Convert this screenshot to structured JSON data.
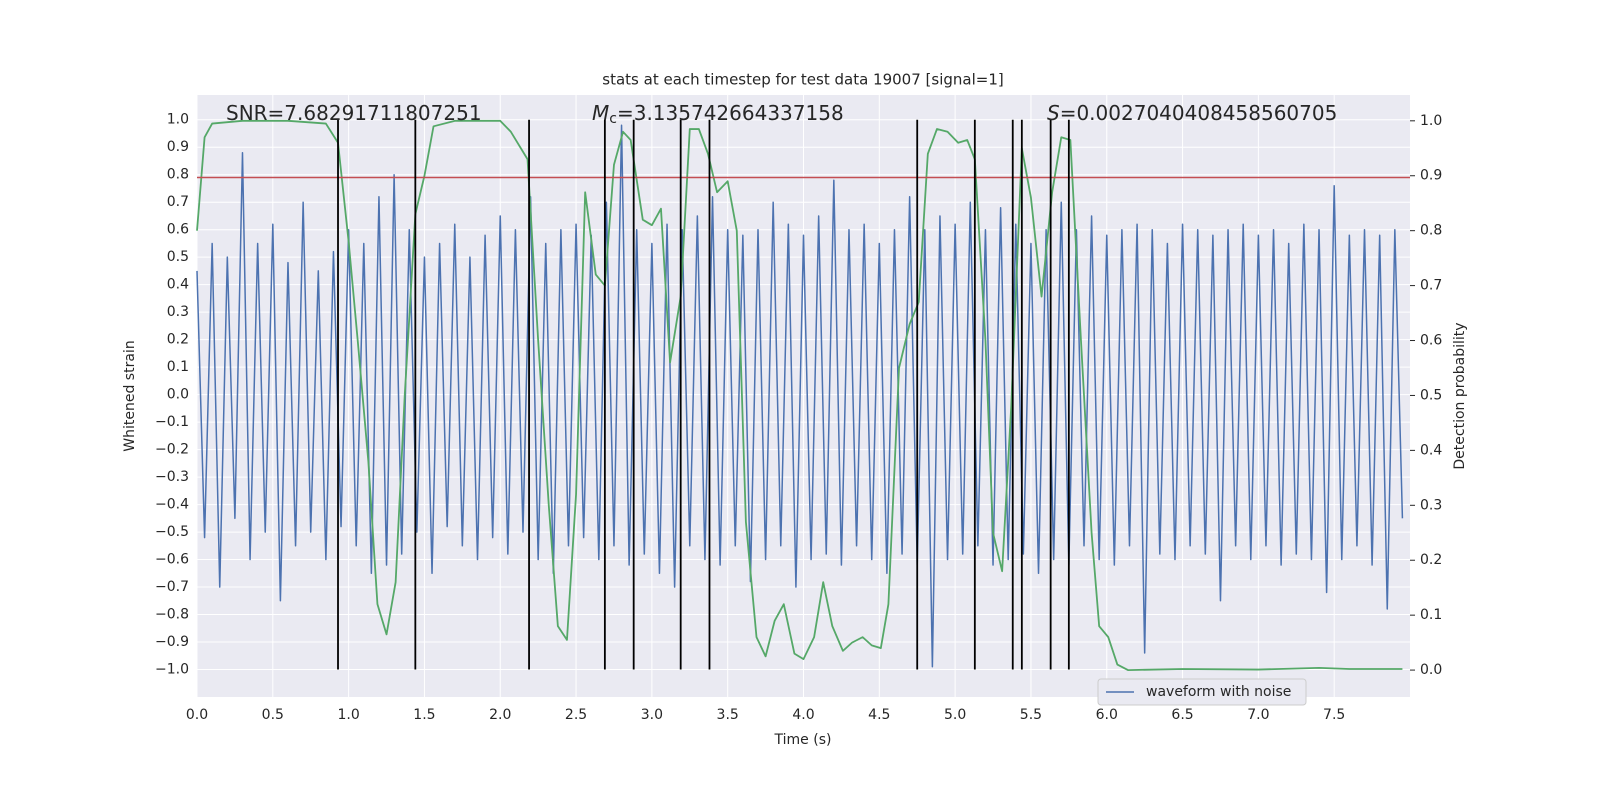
{
  "chart_data": {
    "type": "line",
    "title": "stats at each timestep for test data 19007 [signal=1]",
    "xlabel": "Time (s)",
    "ylabel": "Whitened strain",
    "y2label": "Detection probability",
    "xlim": [
      0,
      8.0
    ],
    "ylim": [
      -1.1,
      1.09
    ],
    "y2lim": [
      -0.049,
      1.047
    ],
    "grid": true,
    "legend": "lower right",
    "xticks": [
      {
        "value": 0,
        "label": "0.0"
      },
      {
        "value": 0.5,
        "label": "0.5"
      },
      {
        "value": 1,
        "label": "1.0"
      },
      {
        "value": 1.5,
        "label": "1.5"
      },
      {
        "value": 2,
        "label": "2.0"
      },
      {
        "value": 2.5,
        "label": "2.5"
      },
      {
        "value": 3,
        "label": "3.0"
      },
      {
        "value": 3.5,
        "label": "3.5"
      },
      {
        "value": 4,
        "label": "4.0"
      },
      {
        "value": 4.5,
        "label": "4.5"
      },
      {
        "value": 5,
        "label": "5.0"
      },
      {
        "value": 5.5,
        "label": "5.5"
      },
      {
        "value": 6,
        "label": "6.0"
      },
      {
        "value": 6.5,
        "label": "6.5"
      },
      {
        "value": 7,
        "label": "7.0"
      },
      {
        "value": 7.5,
        "label": "7.5"
      }
    ],
    "yticks": [
      {
        "value": -1,
        "label": "−1.0"
      },
      {
        "value": -0.9,
        "label": "−0.9"
      },
      {
        "value": -0.8,
        "label": "−0.8"
      },
      {
        "value": -0.7,
        "label": "−0.7"
      },
      {
        "value": -0.6,
        "label": "−0.6"
      },
      {
        "value": -0.5,
        "label": "−0.5"
      },
      {
        "value": -0.4,
        "label": "−0.4"
      },
      {
        "value": -0.3,
        "label": "−0.3"
      },
      {
        "value": -0.2,
        "label": "−0.2"
      },
      {
        "value": -0.1,
        "label": "−0.1"
      },
      {
        "value": 0,
        "label": "0.0"
      },
      {
        "value": 0.1,
        "label": "0.1"
      },
      {
        "value": 0.2,
        "label": "0.2"
      },
      {
        "value": 0.3,
        "label": "0.3"
      },
      {
        "value": 0.4,
        "label": "0.4"
      },
      {
        "value": 0.5,
        "label": "0.5"
      },
      {
        "value": 0.6,
        "label": "0.6"
      },
      {
        "value": 0.7,
        "label": "0.7"
      },
      {
        "value": 0.8,
        "label": "0.8"
      },
      {
        "value": 0.9,
        "label": "0.9"
      },
      {
        "value": 1,
        "label": "1.0"
      }
    ],
    "y2ticks": [
      {
        "value": 0,
        "label": "0.0"
      },
      {
        "value": 0.1,
        "label": "0.1"
      },
      {
        "value": 0.2,
        "label": "0.2"
      },
      {
        "value": 0.3,
        "label": "0.3"
      },
      {
        "value": 0.4,
        "label": "0.4"
      },
      {
        "value": 0.5,
        "label": "0.5"
      },
      {
        "value": 0.6,
        "label": "0.6"
      },
      {
        "value": 0.7,
        "label": "0.7"
      },
      {
        "value": 0.8,
        "label": "0.8"
      },
      {
        "value": 0.9,
        "label": "0.9"
      },
      {
        "value": 1,
        "label": "1.0"
      }
    ],
    "series": [
      {
        "name": "waveform with noise",
        "color": "#4c72b0",
        "x": [
          0,
          0.05,
          0.1,
          0.15,
          0.2,
          0.25,
          0.3,
          0.35,
          0.4,
          0.45,
          0.5,
          0.55,
          0.6,
          0.65,
          0.7,
          0.75,
          0.8,
          0.85,
          0.9,
          0.95,
          1,
          1.05,
          1.1,
          1.15,
          1.2,
          1.25,
          1.3,
          1.35,
          1.4,
          1.45,
          1.5,
          1.55,
          1.6,
          1.65,
          1.7,
          1.75,
          1.8,
          1.85,
          1.9,
          1.95,
          2,
          2.05,
          2.1,
          2.15,
          2.2,
          2.25,
          2.3,
          2.35,
          2.4,
          2.45,
          2.5,
          2.55,
          2.6,
          2.65,
          2.7,
          2.75,
          2.8,
          2.85,
          2.9,
          2.95,
          3,
          3.05,
          3.1,
          3.15,
          3.2,
          3.25,
          3.3,
          3.35,
          3.4,
          3.45,
          3.5,
          3.55,
          3.6,
          3.65,
          3.7,
          3.75,
          3.8,
          3.85,
          3.9,
          3.95,
          4,
          4.05,
          4.1,
          4.15,
          4.2,
          4.25,
          4.3,
          4.35,
          4.4,
          4.45,
          4.5,
          4.55,
          4.6,
          4.65,
          4.7,
          4.75,
          4.8,
          4.85,
          4.9,
          4.95,
          5,
          5.05,
          5.1,
          5.15,
          5.2,
          5.25,
          5.3,
          5.35,
          5.4,
          5.45,
          5.5,
          5.55,
          5.6,
          5.65,
          5.7,
          5.75,
          5.8,
          5.85,
          5.9,
          5.95,
          6,
          6.05,
          6.1,
          6.15,
          6.2,
          6.25,
          6.3,
          6.35,
          6.4,
          6.45,
          6.5,
          6.55,
          6.6,
          6.65,
          6.7,
          6.75,
          6.8,
          6.85,
          6.9,
          6.95,
          7,
          7.05,
          7.1,
          7.15,
          7.2,
          7.25,
          7.3,
          7.35,
          7.4,
          7.45,
          7.5,
          7.55,
          7.6,
          7.65,
          7.7,
          7.75,
          7.8,
          7.85,
          7.9,
          7.95
        ],
        "values": [
          0.45,
          -0.52,
          0.55,
          -0.7,
          0.5,
          -0.45,
          0.88,
          -0.6,
          0.55,
          -0.5,
          0.62,
          -0.75,
          0.48,
          -0.55,
          0.7,
          -0.5,
          0.45,
          -0.6,
          0.52,
          -0.48,
          0.6,
          -0.55,
          0.55,
          -0.65,
          0.72,
          -0.62,
          0.8,
          -0.58,
          0.6,
          -0.5,
          0.5,
          -0.65,
          0.55,
          -0.48,
          0.62,
          -0.55,
          0.5,
          -0.6,
          0.58,
          -0.52,
          0.65,
          -0.58,
          0.6,
          -0.5,
          0.72,
          -0.6,
          0.55,
          -0.65,
          0.6,
          -0.55,
          0.62,
          -0.52,
          0.58,
          -0.6,
          0.7,
          -0.55,
          0.98,
          -0.62,
          0.6,
          -0.58,
          0.55,
          -0.65,
          0.62,
          -0.7,
          0.6,
          -0.55,
          0.65,
          -0.6,
          0.72,
          -0.62,
          0.6,
          -0.55,
          0.58,
          -0.68,
          0.6,
          -0.6,
          0.7,
          -0.55,
          0.62,
          -0.7,
          0.58,
          -0.6,
          0.65,
          -0.58,
          0.78,
          -0.62,
          0.6,
          -0.55,
          0.62,
          -0.6,
          0.55,
          -0.65,
          0.6,
          -0.58,
          0.72,
          -0.62,
          0.6,
          -0.99,
          0.65,
          -0.6,
          0.62,
          -0.58,
          0.7,
          -0.55,
          0.6,
          -0.62,
          0.68,
          -0.6,
          0.62,
          -0.58,
          0.55,
          -0.65,
          0.6,
          -0.6,
          0.7,
          -0.62,
          0.6,
          -0.55,
          0.65,
          -0.6,
          0.58,
          -0.62,
          0.6,
          -0.55,
          0.62,
          -0.94,
          0.6,
          -0.58,
          0.55,
          -0.6,
          0.62,
          -0.55,
          0.6,
          -0.58,
          0.58,
          -0.75,
          0.6,
          -0.55,
          0.62,
          -0.6,
          0.58,
          -0.55,
          0.6,
          -0.62,
          0.55,
          -0.58,
          0.62,
          -0.6,
          0.6,
          -0.72,
          0.76,
          -0.6,
          0.58,
          -0.55,
          0.6,
          -0.62,
          0.58,
          -0.78,
          0.6,
          -0.45
        ]
      },
      {
        "color": "#55a868",
        "axis": "y2",
        "x": [
          0,
          0.05,
          0.1,
          0.3,
          0.6,
          0.85,
          0.93,
          1,
          1.06,
          1.13,
          1.19,
          1.25,
          1.31,
          1.37,
          1.44,
          1.5,
          1.56,
          1.7,
          2,
          2.07,
          2.18,
          2.25,
          2.32,
          2.38,
          2.44,
          2.5,
          2.56,
          2.63,
          2.69,
          2.75,
          2.81,
          2.86,
          2.94,
          3,
          3.06,
          3.12,
          3.19,
          3.25,
          3.31,
          3.37,
          3.43,
          3.5,
          3.56,
          3.62,
          3.69,
          3.75,
          3.81,
          3.87,
          3.94,
          4,
          4.07,
          4.13,
          4.19,
          4.26,
          4.32,
          4.39,
          4.45,
          4.51,
          4.56,
          4.63,
          4.7,
          4.76,
          4.82,
          4.88,
          4.95,
          5.02,
          5.08,
          5.13,
          5.2,
          5.25,
          5.31,
          5.37,
          5.44,
          5.5,
          5.57,
          5.64,
          5.7,
          5.76,
          5.83,
          5.9,
          5.95,
          6.01,
          6.07,
          6.14,
          6.5,
          7,
          7.4,
          7.6,
          7.95
        ],
        "values": [
          0.8,
          0.97,
          0.995,
          1.0,
          1.0,
          0.995,
          0.96,
          0.78,
          0.6,
          0.38,
          0.12,
          0.065,
          0.16,
          0.5,
          0.83,
          0.9,
          0.99,
          1.0,
          1.0,
          0.98,
          0.93,
          0.6,
          0.3,
          0.08,
          0.055,
          0.32,
          0.87,
          0.72,
          0.7,
          0.92,
          0.98,
          0.965,
          0.82,
          0.81,
          0.84,
          0.56,
          0.68,
          0.985,
          0.985,
          0.94,
          0.87,
          0.89,
          0.8,
          0.27,
          0.06,
          0.025,
          0.09,
          0.12,
          0.03,
          0.02,
          0.06,
          0.16,
          0.08,
          0.035,
          0.05,
          0.06,
          0.045,
          0.04,
          0.12,
          0.55,
          0.63,
          0.67,
          0.94,
          0.985,
          0.98,
          0.96,
          0.965,
          0.93,
          0.6,
          0.25,
          0.18,
          0.48,
          0.95,
          0.86,
          0.68,
          0.87,
          0.97,
          0.965,
          0.6,
          0.25,
          0.08,
          0.06,
          0.01,
          0.0,
          0.002,
          0.001,
          0.004,
          0.002,
          0.002
        ]
      }
    ],
    "vlines": {
      "color": "#000000",
      "range": [
        -1,
        1
      ],
      "x": [
        0.93,
        1.44,
        2.19,
        2.69,
        2.88,
        3.19,
        3.38,
        4.75,
        5.13,
        5.38,
        5.44,
        5.63,
        5.75
      ]
    },
    "hline": {
      "color": "#c44e52",
      "value": 0.79
    },
    "annotations": [
      [
        "SNR=7.68291711807251"
      ],
      [
        "M",
        "c",
        "=3.135742664337158"
      ],
      [
        "S",
        "=0.0027040408458560705"
      ]
    ]
  }
}
